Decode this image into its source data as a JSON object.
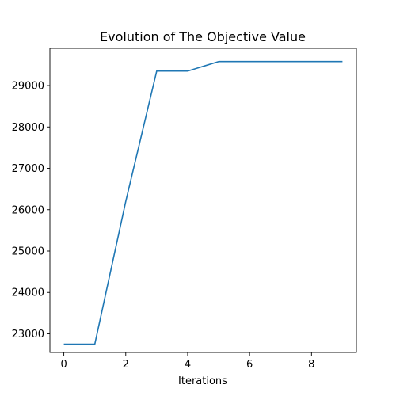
{
  "chart_data": {
    "type": "line",
    "title": "Evolution of The Objective Value",
    "xlabel": "Iterations",
    "ylabel": "",
    "xlim": [
      -0.45,
      9.45
    ],
    "ylim": [
      22550,
      29900
    ],
    "xticks": [
      0,
      2,
      4,
      6,
      8
    ],
    "yticks": [
      23000,
      24000,
      25000,
      26000,
      27000,
      28000,
      29000
    ],
    "grid": false,
    "series": [
      {
        "color": "#1f77b4",
        "x": [
          0,
          1,
          2,
          3,
          4,
          5,
          6,
          7,
          8,
          9
        ],
        "y": [
          22750,
          22750,
          26200,
          29350,
          29350,
          29580,
          29580,
          29580,
          29580,
          29580
        ]
      }
    ]
  }
}
